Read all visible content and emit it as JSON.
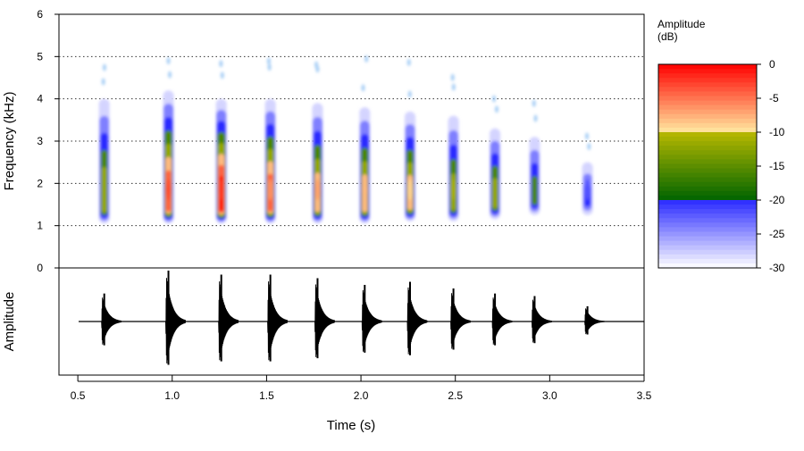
{
  "chart_data": {
    "type": "heatmap",
    "title": "",
    "spectrogram": {
      "ylabel": "Frequency (kHz)",
      "ylim": [
        0,
        6
      ],
      "yticks": [
        "0",
        "1",
        "2",
        "3",
        "4",
        "5",
        "6"
      ],
      "grid": "dotted horizontal lines at 1–5 kHz",
      "pulses": [
        {
          "time": 0.64,
          "fmin": 1.05,
          "fmax": 4.0,
          "peak_db": -12
        },
        {
          "time": 0.98,
          "fmin": 1.05,
          "fmax": 4.2,
          "peak_db": -3
        },
        {
          "time": 1.26,
          "fmin": 1.05,
          "fmax": 4.0,
          "peak_db": -2
        },
        {
          "time": 1.52,
          "fmin": 1.05,
          "fmax": 4.0,
          "peak_db": -6
        },
        {
          "time": 1.77,
          "fmin": 1.05,
          "fmax": 3.9,
          "peak_db": -7
        },
        {
          "time": 2.02,
          "fmin": 1.05,
          "fmax": 3.8,
          "peak_db": -8
        },
        {
          "time": 2.26,
          "fmin": 1.1,
          "fmax": 3.7,
          "peak_db": -9
        },
        {
          "time": 2.49,
          "fmin": 1.1,
          "fmax": 3.6,
          "peak_db": -11
        },
        {
          "time": 2.71,
          "fmin": 1.15,
          "fmax": 3.3,
          "peak_db": -12
        },
        {
          "time": 2.92,
          "fmin": 1.25,
          "fmax": 3.1,
          "peak_db": -16
        },
        {
          "time": 3.2,
          "fmin": 1.25,
          "fmax": 2.5,
          "peak_db": -22
        }
      ]
    },
    "waveform": {
      "ylabel": "Amplitude",
      "pulses": [
        {
          "time": 0.64,
          "relative_amplitude": 0.55
        },
        {
          "time": 0.98,
          "relative_amplitude": 1.0
        },
        {
          "time": 1.26,
          "relative_amplitude": 0.92
        },
        {
          "time": 1.52,
          "relative_amplitude": 0.92
        },
        {
          "time": 1.77,
          "relative_amplitude": 0.85
        },
        {
          "time": 2.02,
          "relative_amplitude": 0.72
        },
        {
          "time": 2.26,
          "relative_amplitude": 0.78
        },
        {
          "time": 2.49,
          "relative_amplitude": 0.65
        },
        {
          "time": 2.71,
          "relative_amplitude": 0.55
        },
        {
          "time": 2.92,
          "relative_amplitude": 0.5
        },
        {
          "time": 3.2,
          "relative_amplitude": 0.3
        }
      ]
    },
    "x": {
      "xlabel": "Time (s)",
      "xlim": [
        0.4,
        3.5
      ],
      "xticks": [
        "0.5",
        "1.0",
        "1.5",
        "2.0",
        "2.5",
        "3.0",
        "3.5"
      ]
    },
    "colorbar": {
      "title_line1": "Amplitude",
      "title_line2": "(dB)",
      "range": [
        -30,
        0
      ],
      "ticks": [
        "0",
        "-5",
        "-10",
        "-15",
        "-20",
        "-25",
        "-30"
      ],
      "bands": [
        {
          "from": -30,
          "to": -20,
          "color_low": "#ffffff",
          "color_high": "#2a2aff"
        },
        {
          "from": -20,
          "to": -10,
          "color_low": "#006400",
          "color_high": "#b8b800"
        },
        {
          "from": -10,
          "to": 0,
          "color_low": "#ffe8a0",
          "color_high": "#ff0000"
        }
      ]
    }
  }
}
